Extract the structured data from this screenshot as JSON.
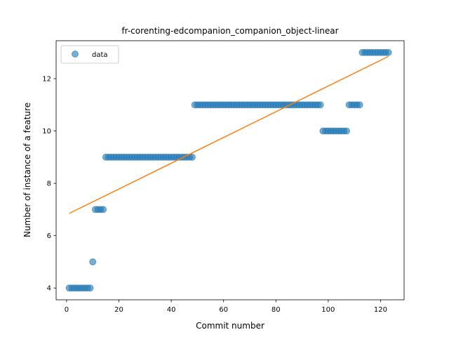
{
  "chart_data": {
    "type": "scatter",
    "title": "fr-corenting-edcompanion_companion_object-linear",
    "xlabel": "Commit number",
    "ylabel": "Number of instance of a feature",
    "xlim": [
      -4,
      129
    ],
    "ylim": [
      3.55,
      13.45
    ],
    "xticks": [
      0,
      20,
      40,
      60,
      80,
      100,
      120
    ],
    "yticks": [
      4,
      6,
      8,
      10,
      12
    ],
    "grid": false,
    "legend": {
      "position": "top-left",
      "entries": [
        "data"
      ]
    },
    "colors": {
      "data": "#1f77b4",
      "fit": "#ff7f0e"
    },
    "series": [
      {
        "name": "data",
        "kind": "scatter",
        "x": [
          1,
          2,
          3,
          4,
          5,
          6,
          7,
          8,
          9,
          10,
          11,
          12,
          13,
          14,
          15,
          16,
          17,
          18,
          19,
          20,
          21,
          22,
          23,
          24,
          25,
          26,
          27,
          28,
          29,
          30,
          31,
          32,
          33,
          34,
          35,
          36,
          37,
          38,
          39,
          40,
          41,
          42,
          43,
          44,
          45,
          46,
          47,
          48,
          49,
          50,
          51,
          52,
          53,
          54,
          55,
          56,
          57,
          58,
          59,
          60,
          61,
          62,
          63,
          64,
          65,
          66,
          67,
          68,
          69,
          70,
          71,
          72,
          73,
          74,
          75,
          76,
          77,
          78,
          79,
          80,
          81,
          82,
          83,
          84,
          85,
          86,
          87,
          88,
          89,
          90,
          91,
          92,
          93,
          94,
          95,
          96,
          97,
          98,
          99,
          100,
          101,
          102,
          103,
          104,
          105,
          106,
          107,
          108,
          109,
          110,
          111,
          112,
          113,
          114,
          115,
          116,
          117,
          118,
          119,
          120,
          121,
          122,
          123
        ],
        "y": [
          4,
          4,
          4,
          4,
          4,
          4,
          4,
          4,
          4,
          5,
          7,
          7,
          7,
          7,
          9,
          9,
          9,
          9,
          9,
          9,
          9,
          9,
          9,
          9,
          9,
          9,
          9,
          9,
          9,
          9,
          9,
          9,
          9,
          9,
          9,
          9,
          9,
          9,
          9,
          9,
          9,
          9,
          9,
          9,
          9,
          9,
          9,
          9,
          11,
          11,
          11,
          11,
          11,
          11,
          11,
          11,
          11,
          11,
          11,
          11,
          11,
          11,
          11,
          11,
          11,
          11,
          11,
          11,
          11,
          11,
          11,
          11,
          11,
          11,
          11,
          11,
          11,
          11,
          11,
          11,
          11,
          11,
          11,
          11,
          11,
          11,
          11,
          11,
          11,
          11,
          11,
          11,
          11,
          11,
          11,
          11,
          11,
          10,
          10,
          10,
          10,
          10,
          10,
          10,
          10,
          10,
          10,
          11,
          11,
          11,
          11,
          11,
          13,
          13,
          13,
          13,
          13,
          13,
          13,
          13,
          13,
          13,
          13
        ]
      },
      {
        "name": "",
        "kind": "line",
        "x": [
          1,
          123
        ],
        "y": [
          6.85,
          12.85
        ]
      }
    ]
  }
}
